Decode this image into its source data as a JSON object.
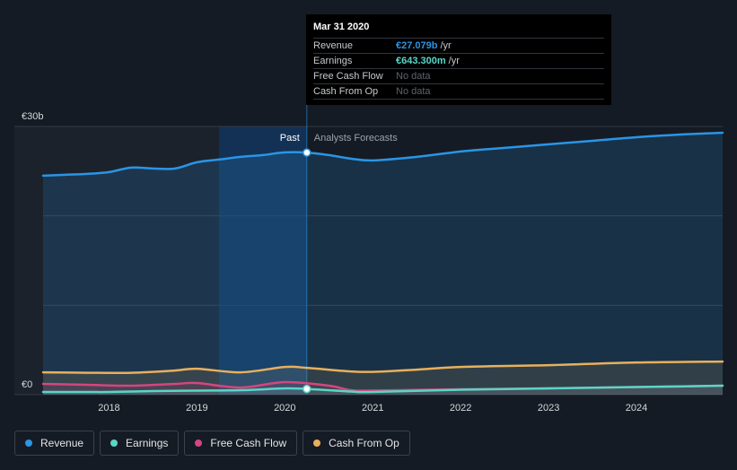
{
  "chart_data": {
    "type": "area",
    "y_axis": {
      "ticks": [
        {
          "value": 30,
          "label": "€30b"
        },
        {
          "value": 0,
          "label": "€0"
        }
      ],
      "ylim": [
        0,
        30
      ]
    },
    "x_axis": {
      "ticks": [
        "2018",
        "2019",
        "2020",
        "2021",
        "2022",
        "2023",
        "2024"
      ],
      "xlim": [
        2017.25,
        2024.98
      ]
    },
    "regions": {
      "past_label": "Past",
      "forecast_label": "Analysts Forecasts",
      "divider_x": 2020.25
    },
    "series": [
      {
        "key": "revenue",
        "name": "Revenue",
        "color": "#2a95e6",
        "x": [
          2017.25,
          2017.5,
          2017.75,
          2018.0,
          2018.25,
          2018.5,
          2018.75,
          2019.0,
          2019.25,
          2019.5,
          2019.75,
          2020.0,
          2020.25,
          2020.5,
          2020.75,
          2021.0,
          2021.5,
          2022.0,
          2022.5,
          2023.0,
          2023.5,
          2024.0,
          2024.5,
          2024.98
        ],
        "values": [
          24.5,
          24.6,
          24.7,
          24.9,
          25.4,
          25.3,
          25.3,
          26.0,
          26.3,
          26.6,
          26.8,
          27.1,
          27.08,
          26.8,
          26.4,
          26.2,
          26.6,
          27.2,
          27.6,
          28.0,
          28.4,
          28.8,
          29.1,
          29.3
        ]
      },
      {
        "key": "cash_from_op",
        "name": "Cash From Op",
        "color": "#e8b05d",
        "x": [
          2017.25,
          2017.75,
          2018.25,
          2018.75,
          2019.0,
          2019.5,
          2020.0,
          2020.25,
          2020.75,
          2021.0,
          2021.5,
          2022.0,
          2023.0,
          2024.0,
          2024.98
        ],
        "values": [
          2.5,
          2.45,
          2.45,
          2.7,
          2.9,
          2.5,
          3.1,
          3.0,
          2.6,
          2.55,
          2.8,
          3.1,
          3.3,
          3.6,
          3.7
        ]
      },
      {
        "key": "free_cash_flow",
        "name": "Free Cash Flow",
        "color": "#d4467f",
        "x": [
          2017.25,
          2017.75,
          2018.25,
          2018.75,
          2019.0,
          2019.5,
          2020.0,
          2020.5,
          2020.75,
          2021.0,
          2022.0,
          2023.0,
          2024.0,
          2024.98
        ],
        "values": [
          1.2,
          1.1,
          1.0,
          1.2,
          1.3,
          0.8,
          1.4,
          1.0,
          0.5,
          0.45,
          0.6,
          0.7,
          0.85,
          1.0
        ]
      },
      {
        "key": "earnings",
        "name": "Earnings",
        "color": "#58d6c8",
        "x": [
          2017.25,
          2017.75,
          2018.0,
          2018.5,
          2019.0,
          2019.5,
          2020.0,
          2020.25,
          2020.75,
          2021.0,
          2022.0,
          2023.0,
          2024.0,
          2024.98
        ],
        "values": [
          0.3,
          0.3,
          0.3,
          0.4,
          0.45,
          0.5,
          0.7,
          0.64,
          0.35,
          0.3,
          0.55,
          0.7,
          0.85,
          1.0
        ]
      }
    ],
    "marker": {
      "x": 2020.25,
      "revenue": 27.079,
      "earnings": 0.6433
    }
  },
  "tooltip": {
    "date": "Mar 31 2020",
    "rows": [
      {
        "label": "Revenue",
        "value": "€27.079b",
        "unit": "/yr",
        "color": "#2a95e6"
      },
      {
        "label": "Earnings",
        "value": "€643.300m",
        "unit": "/yr",
        "color": "#58d6c8"
      },
      {
        "label": "Free Cash Flow",
        "value": "No data"
      },
      {
        "label": "Cash From Op",
        "value": "No data"
      }
    ]
  },
  "legend": [
    {
      "label": "Revenue",
      "color": "#2a95e6"
    },
    {
      "label": "Earnings",
      "color": "#58d6c8"
    },
    {
      "label": "Free Cash Flow",
      "color": "#d4467f"
    },
    {
      "label": "Cash From Op",
      "color": "#e8b05d"
    }
  ]
}
